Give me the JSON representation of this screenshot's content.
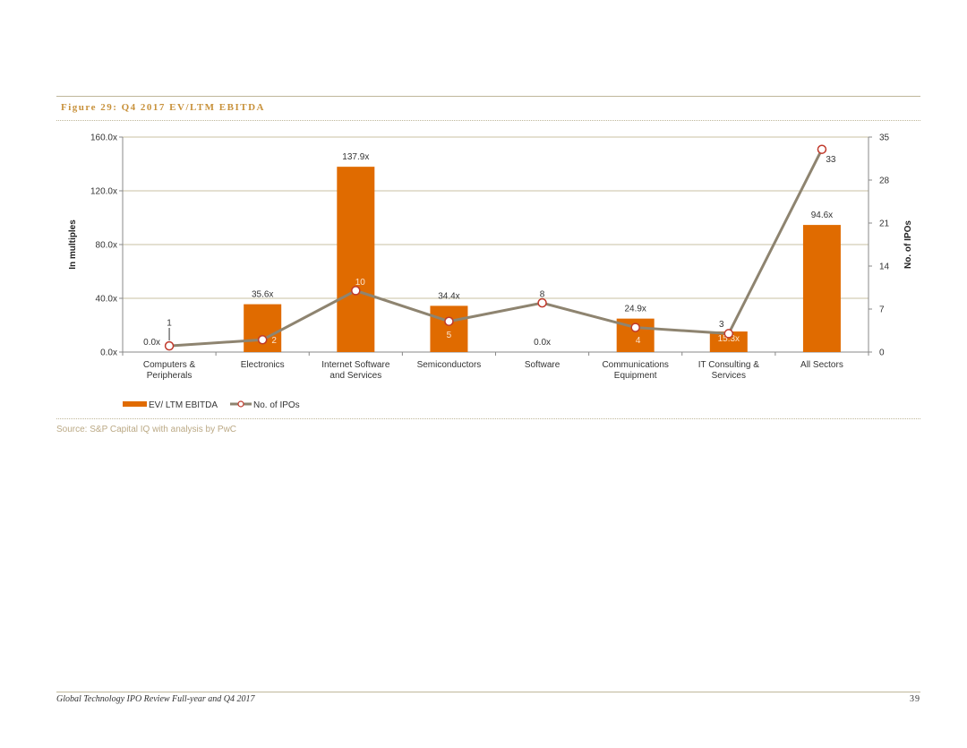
{
  "figure": {
    "title": "Figure 29: Q4 2017 EV/LTM EBITDA",
    "source": "Source: S&P Capital IQ with analysis by PwC"
  },
  "footer": {
    "document_title": "Global Technology IPO Review Full-year and Q4 2017",
    "page_number": "39"
  },
  "colors": {
    "bar": "#e06b00",
    "line": "#8e8470",
    "marker_fill": "#ffffff",
    "marker_stroke": "#c0392b",
    "gridline": "#c9c2a3"
  },
  "chart_data": {
    "type": "bar",
    "categories": [
      [
        "Computers &",
        "Peripherals"
      ],
      [
        "Electronics"
      ],
      [
        "Internet Software",
        "and Services"
      ],
      [
        "Semiconductors"
      ],
      [
        "Software"
      ],
      [
        "Communications",
        "Equipment"
      ],
      [
        "IT Consulting &",
        "Services"
      ],
      [
        "All Sectors"
      ]
    ],
    "series": [
      {
        "name": "EV/ LTM EBITDA",
        "type": "bar",
        "axis": "left",
        "values": [
          0.0,
          35.6,
          137.9,
          34.4,
          0.0,
          24.9,
          15.3,
          94.6
        ],
        "data_labels": [
          "0.0x",
          "35.6x",
          "137.9x",
          "34.4x",
          "0.0x",
          "24.9x",
          "15.3x",
          "94.6x"
        ]
      },
      {
        "name": "No. of IPOs",
        "type": "line",
        "axis": "right",
        "values": [
          1,
          2,
          10,
          5,
          8,
          4,
          3,
          33
        ],
        "data_labels": [
          "1",
          "2",
          "10",
          "5",
          "8",
          "4",
          "3",
          "33"
        ]
      }
    ],
    "ylabel": "In multiples",
    "y2label": "No. of IPOs",
    "ylim": [
      0,
      160
    ],
    "y2lim": [
      0,
      35
    ],
    "yticks": [
      "0.0x",
      "40.0x",
      "80.0x",
      "120.0x",
      "160.0x"
    ],
    "y2ticks": [
      "0",
      "7",
      "14",
      "21",
      "28",
      "35"
    ],
    "grid": true,
    "legend": "bottom-left"
  }
}
